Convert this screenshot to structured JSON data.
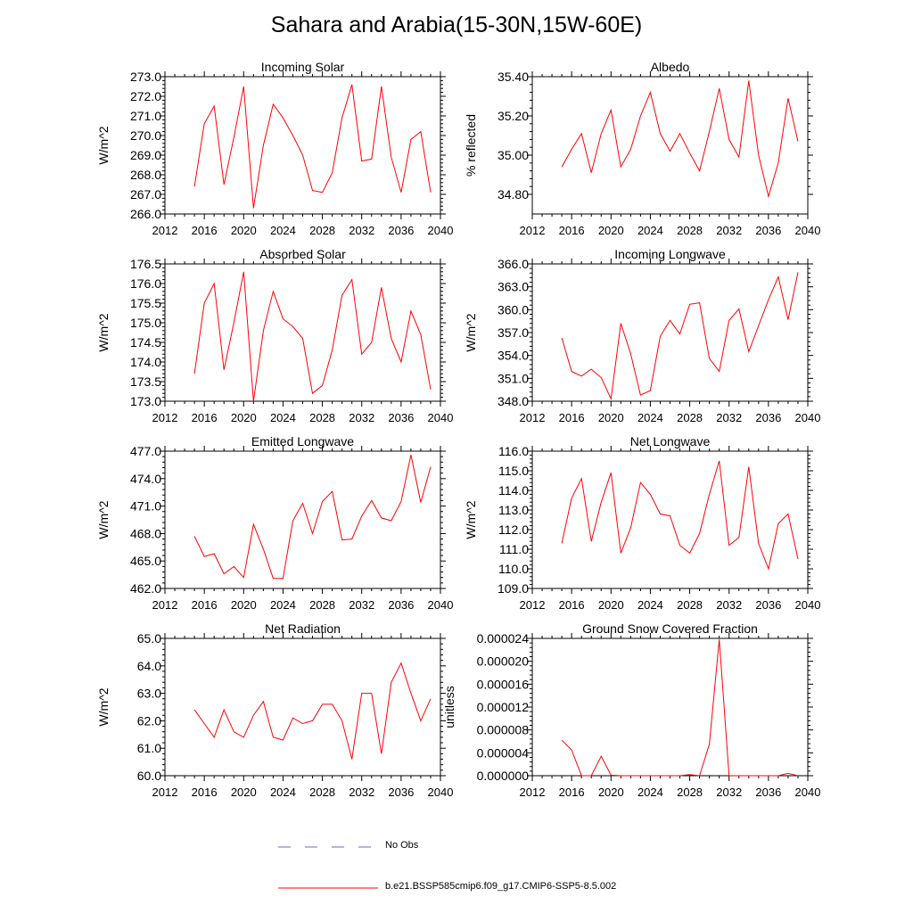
{
  "figure_title": "Sahara and Arabia(15-30N,15W-60E)",
  "colors": {
    "model_line": "#ff0000",
    "obs_line": "#6a6acd",
    "axis": "#000000"
  },
  "legend": {
    "obs_label": "No Obs",
    "model_label": "b.e21.BSSP585cmip6.f09_g17.CMIP6-SSP5-8.5.002"
  },
  "chart_data": [
    {
      "type": "line",
      "title": "Incoming Solar",
      "ylabel": "W/m^2",
      "xlim": [
        2012,
        2040
      ],
      "ylim": [
        266.0,
        273.0
      ],
      "xticks": [
        2012,
        2016,
        2020,
        2024,
        2028,
        2032,
        2036,
        2040
      ],
      "yticks": [
        266.0,
        267.0,
        268.0,
        269.0,
        270.0,
        271.0,
        272.0,
        273.0
      ],
      "ytick_decimals": 1,
      "x": [
        2015,
        2016,
        2017,
        2018,
        2019,
        2020,
        2021,
        2022,
        2023,
        2024,
        2025,
        2026,
        2027,
        2028,
        2029,
        2030,
        2031,
        2032,
        2033,
        2034,
        2035,
        2036,
        2037,
        2038,
        2039
      ],
      "series": [
        {
          "values": [
            267.4,
            270.6,
            271.5,
            267.5,
            269.9,
            272.5,
            266.3,
            269.5,
            271.6,
            270.9,
            270.0,
            269.0,
            267.2,
            267.1,
            268.1,
            270.9,
            272.6,
            268.7,
            268.8,
            272.5,
            268.9,
            267.1,
            269.8,
            270.2,
            267.1
          ]
        }
      ]
    },
    {
      "type": "line",
      "title": "Albedo",
      "ylabel": "% reflected",
      "xlim": [
        2012,
        2040
      ],
      "ylim": [
        34.7,
        35.4
      ],
      "xticks": [
        2012,
        2016,
        2020,
        2024,
        2028,
        2032,
        2036,
        2040
      ],
      "yticks": [
        34.8,
        35.0,
        35.2,
        35.4
      ],
      "ytick_decimals": 2,
      "x": [
        2015,
        2016,
        2017,
        2018,
        2019,
        2020,
        2021,
        2022,
        2023,
        2024,
        2025,
        2026,
        2027,
        2028,
        2029,
        2030,
        2031,
        2032,
        2033,
        2034,
        2035,
        2036,
        2037,
        2038,
        2039
      ],
      "series": [
        {
          "values": [
            34.94,
            35.03,
            35.11,
            34.91,
            35.11,
            35.23,
            34.94,
            35.03,
            35.2,
            35.32,
            35.11,
            35.02,
            35.11,
            35.01,
            34.92,
            35.12,
            35.34,
            35.08,
            34.99,
            35.38,
            35.0,
            34.79,
            34.96,
            35.29,
            35.07
          ]
        }
      ]
    },
    {
      "type": "line",
      "title": "Absorbed Solar",
      "ylabel": "W/m^2",
      "xlim": [
        2012,
        2040
      ],
      "ylim": [
        173.0,
        176.5
      ],
      "xticks": [
        2012,
        2016,
        2020,
        2024,
        2028,
        2032,
        2036,
        2040
      ],
      "yticks": [
        173.0,
        173.5,
        174.0,
        174.5,
        175.0,
        175.5,
        176.0,
        176.5
      ],
      "ytick_decimals": 1,
      "x": [
        2015,
        2016,
        2017,
        2018,
        2019,
        2020,
        2021,
        2022,
        2023,
        2024,
        2025,
        2026,
        2027,
        2028,
        2029,
        2030,
        2031,
        2032,
        2033,
        2034,
        2035,
        2036,
        2037,
        2038,
        2039
      ],
      "series": [
        {
          "values": [
            173.7,
            175.5,
            176.0,
            173.8,
            175.0,
            176.3,
            173.0,
            174.8,
            175.8,
            175.1,
            174.9,
            174.6,
            173.2,
            173.4,
            174.3,
            175.7,
            176.1,
            174.2,
            174.5,
            175.9,
            174.6,
            174.0,
            175.3,
            174.7,
            173.3
          ]
        }
      ]
    },
    {
      "type": "line",
      "title": "Incoming Longwave",
      "ylabel": "W/m^2",
      "xlim": [
        2012,
        2040
      ],
      "ylim": [
        348.0,
        366.0
      ],
      "xticks": [
        2012,
        2016,
        2020,
        2024,
        2028,
        2032,
        2036,
        2040
      ],
      "yticks": [
        348.0,
        351.0,
        354.0,
        357.0,
        360.0,
        363.0,
        366.0
      ],
      "ytick_decimals": 1,
      "x": [
        2015,
        2016,
        2017,
        2018,
        2019,
        2020,
        2021,
        2022,
        2023,
        2024,
        2025,
        2026,
        2027,
        2028,
        2029,
        2030,
        2031,
        2032,
        2033,
        2034,
        2035,
        2036,
        2037,
        2038,
        2039
      ],
      "series": [
        {
          "values": [
            356.3,
            351.9,
            351.3,
            352.2,
            351.1,
            348.3,
            358.2,
            354.2,
            348.8,
            349.4,
            356.5,
            358.6,
            356.8,
            360.7,
            360.9,
            353.6,
            351.9,
            358.6,
            360.1,
            354.5,
            357.9,
            361.3,
            364.3,
            358.7,
            364.9
          ]
        }
      ]
    },
    {
      "type": "line",
      "title": "Emitted Longwave",
      "ylabel": "W/m^2",
      "xlim": [
        2012,
        2040
      ],
      "ylim": [
        462.0,
        477.0
      ],
      "xticks": [
        2012,
        2016,
        2020,
        2024,
        2028,
        2032,
        2036,
        2040
      ],
      "yticks": [
        462.0,
        465.0,
        468.0,
        471.0,
        474.0,
        477.0
      ],
      "ytick_decimals": 1,
      "x": [
        2015,
        2016,
        2017,
        2018,
        2019,
        2020,
        2021,
        2022,
        2023,
        2024,
        2025,
        2026,
        2027,
        2028,
        2029,
        2030,
        2031,
        2032,
        2033,
        2034,
        2035,
        2036,
        2037,
        2038,
        2039
      ],
      "series": [
        {
          "values": [
            467.7,
            465.5,
            465.8,
            463.6,
            464.4,
            463.2,
            469.0,
            466.3,
            463.1,
            463.1,
            469.4,
            471.3,
            468.0,
            471.5,
            472.6,
            467.3,
            467.4,
            469.9,
            471.6,
            469.7,
            469.4,
            471.5,
            476.6,
            471.4,
            475.3
          ]
        }
      ]
    },
    {
      "type": "line",
      "title": "Net Longwave",
      "ylabel": "W/m^2",
      "xlim": [
        2012,
        2040
      ],
      "ylim": [
        109.0,
        116.0
      ],
      "xticks": [
        2012,
        2016,
        2020,
        2024,
        2028,
        2032,
        2036,
        2040
      ],
      "yticks": [
        109.0,
        110.0,
        111.0,
        112.0,
        113.0,
        114.0,
        115.0,
        116.0
      ],
      "ytick_decimals": 1,
      "x": [
        2015,
        2016,
        2017,
        2018,
        2019,
        2020,
        2021,
        2022,
        2023,
        2024,
        2025,
        2026,
        2027,
        2028,
        2029,
        2030,
        2031,
        2032,
        2033,
        2034,
        2035,
        2036,
        2037,
        2038,
        2039
      ],
      "series": [
        {
          "values": [
            111.3,
            113.6,
            114.6,
            111.4,
            113.4,
            114.9,
            110.8,
            112.1,
            114.4,
            113.8,
            112.8,
            112.7,
            111.2,
            110.8,
            111.8,
            113.8,
            115.5,
            111.2,
            111.6,
            115.2,
            111.3,
            110.0,
            112.3,
            112.8,
            110.5
          ]
        }
      ]
    },
    {
      "type": "line",
      "title": "Net Radiation",
      "ylabel": "W/m^2",
      "xlim": [
        2012,
        2040
      ],
      "ylim": [
        60.0,
        65.0
      ],
      "xticks": [
        2012,
        2016,
        2020,
        2024,
        2028,
        2032,
        2036,
        2040
      ],
      "yticks": [
        60.0,
        61.0,
        62.0,
        63.0,
        64.0,
        65.0
      ],
      "ytick_decimals": 1,
      "x": [
        2015,
        2016,
        2017,
        2018,
        2019,
        2020,
        2021,
        2022,
        2023,
        2024,
        2025,
        2026,
        2027,
        2028,
        2029,
        2030,
        2031,
        2032,
        2033,
        2034,
        2035,
        2036,
        2037,
        2038,
        2039
      ],
      "series": [
        {
          "values": [
            62.4,
            61.9,
            61.4,
            62.4,
            61.6,
            61.4,
            62.2,
            62.7,
            61.4,
            61.3,
            62.1,
            61.9,
            62.0,
            62.6,
            62.6,
            62.0,
            60.6,
            63.0,
            63.0,
            60.8,
            63.4,
            64.1,
            63.0,
            62.0,
            62.8
          ]
        }
      ]
    },
    {
      "type": "line",
      "title": "Ground Snow Covered Fraction",
      "ylabel": "unitless",
      "xlim": [
        2012,
        2040
      ],
      "ylim": [
        0.0,
        2.4e-05
      ],
      "xticks": [
        2012,
        2016,
        2020,
        2024,
        2028,
        2032,
        2036,
        2040
      ],
      "yticks": [
        0.0,
        4e-06,
        8e-06,
        1.2e-05,
        1.6e-05,
        2e-05,
        2.4e-05
      ],
      "ytick_decimals": 6,
      "x": [
        2015,
        2016,
        2017,
        2018,
        2019,
        2020,
        2021,
        2022,
        2023,
        2024,
        2025,
        2026,
        2027,
        2028,
        2029,
        2030,
        2031,
        2032,
        2033,
        2034,
        2035,
        2036,
        2037,
        2038,
        2039
      ],
      "series": [
        {
          "values": [
            6.2e-06,
            4.5e-06,
            0.0,
            0.0,
            3.4e-06,
            1e-07,
            0.0,
            0.0,
            0.0,
            0.0,
            0.0,
            0.0,
            0.0,
            2e-07,
            0.0,
            5.5e-06,
            2.38e-05,
            0.0,
            0.0,
            0.0,
            0.0,
            0.0,
            0.0,
            4e-07,
            0.0
          ]
        }
      ]
    }
  ]
}
